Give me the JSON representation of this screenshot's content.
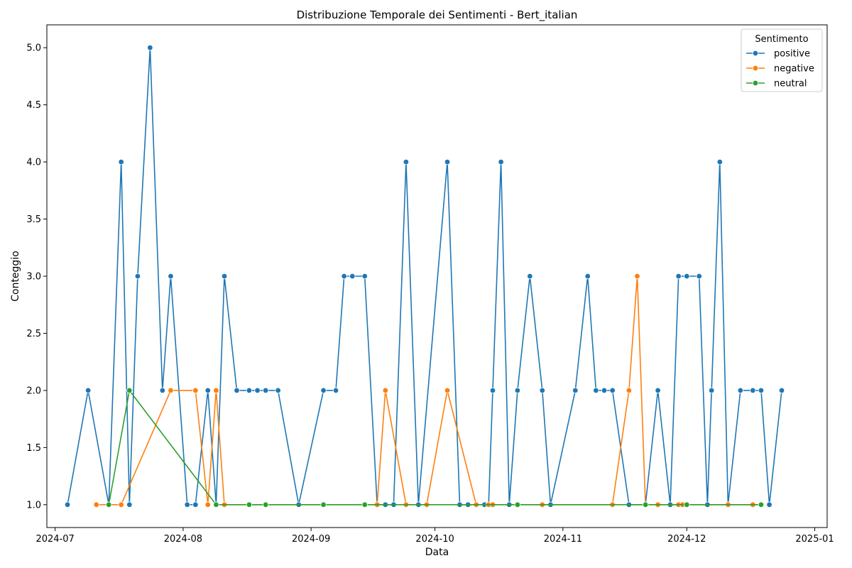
{
  "chart_data": {
    "type": "line",
    "title": "Distribuzione Temporale dei Sentimenti - Bert_italian",
    "xlabel": "Data",
    "ylabel": "Conteggio",
    "x_scale": "date",
    "xlim": [
      "2024-06-29",
      "2025-01-04"
    ],
    "ylim": [
      0.8,
      5.2
    ],
    "x_ticks": [
      "2024-07-01",
      "2024-08-01",
      "2024-09-01",
      "2024-10-01",
      "2024-11-01",
      "2024-12-01",
      "2025-01-01"
    ],
    "x_tick_labels": [
      "2024-07",
      "2024-08",
      "2024-09",
      "2024-10",
      "2024-11",
      "2024-12",
      "2025-01"
    ],
    "y_ticks": [
      1.0,
      1.5,
      2.0,
      2.5,
      3.0,
      3.5,
      4.0,
      4.5,
      5.0
    ],
    "y_tick_labels": [
      "1.0",
      "1.5",
      "2.0",
      "2.5",
      "3.0",
      "3.5",
      "4.0",
      "4.5",
      "5.0"
    ],
    "grid": false,
    "legend": {
      "title": "Sentimento",
      "position": "top-right"
    },
    "marker": "circle",
    "series": [
      {
        "name": "positive",
        "color": "#1f77b4",
        "points": [
          [
            "2024-07-04",
            1
          ],
          [
            "2024-07-09",
            2
          ],
          [
            "2024-07-14",
            1
          ],
          [
            "2024-07-17",
            4
          ],
          [
            "2024-07-19",
            1
          ],
          [
            "2024-07-21",
            3
          ],
          [
            "2024-07-24",
            5
          ],
          [
            "2024-07-27",
            2
          ],
          [
            "2024-07-29",
            3
          ],
          [
            "2024-08-02",
            1
          ],
          [
            "2024-08-04",
            1
          ],
          [
            "2024-08-07",
            2
          ],
          [
            "2024-08-09",
            1
          ],
          [
            "2024-08-11",
            3
          ],
          [
            "2024-08-14",
            2
          ],
          [
            "2024-08-17",
            2
          ],
          [
            "2024-08-19",
            2
          ],
          [
            "2024-08-21",
            2
          ],
          [
            "2024-08-24",
            2
          ],
          [
            "2024-08-29",
            1
          ],
          [
            "2024-09-04",
            2
          ],
          [
            "2024-09-07",
            2
          ],
          [
            "2024-09-09",
            3
          ],
          [
            "2024-09-11",
            3
          ],
          [
            "2024-09-14",
            3
          ],
          [
            "2024-09-17",
            1
          ],
          [
            "2024-09-19",
            1
          ],
          [
            "2024-09-21",
            1
          ],
          [
            "2024-09-24",
            4
          ],
          [
            "2024-09-27",
            1
          ],
          [
            "2024-10-04",
            4
          ],
          [
            "2024-10-07",
            1
          ],
          [
            "2024-10-09",
            1
          ],
          [
            "2024-10-13",
            1
          ],
          [
            "2024-10-14",
            1
          ],
          [
            "2024-10-15",
            2
          ],
          [
            "2024-10-17",
            4
          ],
          [
            "2024-10-19",
            1
          ],
          [
            "2024-10-21",
            2
          ],
          [
            "2024-10-24",
            3
          ],
          [
            "2024-10-27",
            2
          ],
          [
            "2024-10-29",
            1
          ],
          [
            "2024-11-04",
            2
          ],
          [
            "2024-11-07",
            3
          ],
          [
            "2024-11-09",
            2
          ],
          [
            "2024-11-11",
            2
          ],
          [
            "2024-11-13",
            2
          ],
          [
            "2024-11-17",
            1
          ],
          [
            "2024-11-21",
            1
          ],
          [
            "2024-11-24",
            2
          ],
          [
            "2024-11-27",
            1
          ],
          [
            "2024-11-29",
            3
          ],
          [
            "2024-12-01",
            3
          ],
          [
            "2024-12-04",
            3
          ],
          [
            "2024-12-06",
            1
          ],
          [
            "2024-12-07",
            2
          ],
          [
            "2024-12-09",
            4
          ],
          [
            "2024-12-11",
            1
          ],
          [
            "2024-12-14",
            2
          ],
          [
            "2024-12-17",
            2
          ],
          [
            "2024-12-19",
            2
          ],
          [
            "2024-12-21",
            1
          ],
          [
            "2024-12-24",
            2
          ]
        ]
      },
      {
        "name": "negative",
        "color": "#ff7f0e",
        "points": [
          [
            "2024-07-11",
            1
          ],
          [
            "2024-07-17",
            1
          ],
          [
            "2024-07-29",
            2
          ],
          [
            "2024-08-04",
            2
          ],
          [
            "2024-08-07",
            1
          ],
          [
            "2024-08-09",
            2
          ],
          [
            "2024-08-11",
            1
          ],
          [
            "2024-09-17",
            1
          ],
          [
            "2024-09-19",
            2
          ],
          [
            "2024-09-24",
            1
          ],
          [
            "2024-09-29",
            1
          ],
          [
            "2024-10-04",
            2
          ],
          [
            "2024-10-11",
            1
          ],
          [
            "2024-10-14",
            1
          ],
          [
            "2024-10-15",
            1
          ],
          [
            "2024-10-27",
            1
          ],
          [
            "2024-11-13",
            1
          ],
          [
            "2024-11-17",
            2
          ],
          [
            "2024-11-19",
            3
          ],
          [
            "2024-11-21",
            1
          ],
          [
            "2024-11-24",
            1
          ],
          [
            "2024-11-29",
            1
          ],
          [
            "2024-11-30",
            1
          ],
          [
            "2024-12-01",
            1
          ],
          [
            "2024-12-11",
            1
          ],
          [
            "2024-12-17",
            1
          ],
          [
            "2024-12-19",
            1
          ]
        ]
      },
      {
        "name": "neutral",
        "color": "#2ca02c",
        "points": [
          [
            "2024-07-14",
            1
          ],
          [
            "2024-07-19",
            2
          ],
          [
            "2024-08-09",
            1
          ],
          [
            "2024-08-17",
            1
          ],
          [
            "2024-08-21",
            1
          ],
          [
            "2024-09-04",
            1
          ],
          [
            "2024-09-14",
            1
          ],
          [
            "2024-10-21",
            1
          ],
          [
            "2024-11-21",
            1
          ],
          [
            "2024-12-01",
            1
          ],
          [
            "2024-12-19",
            1
          ]
        ]
      }
    ]
  }
}
